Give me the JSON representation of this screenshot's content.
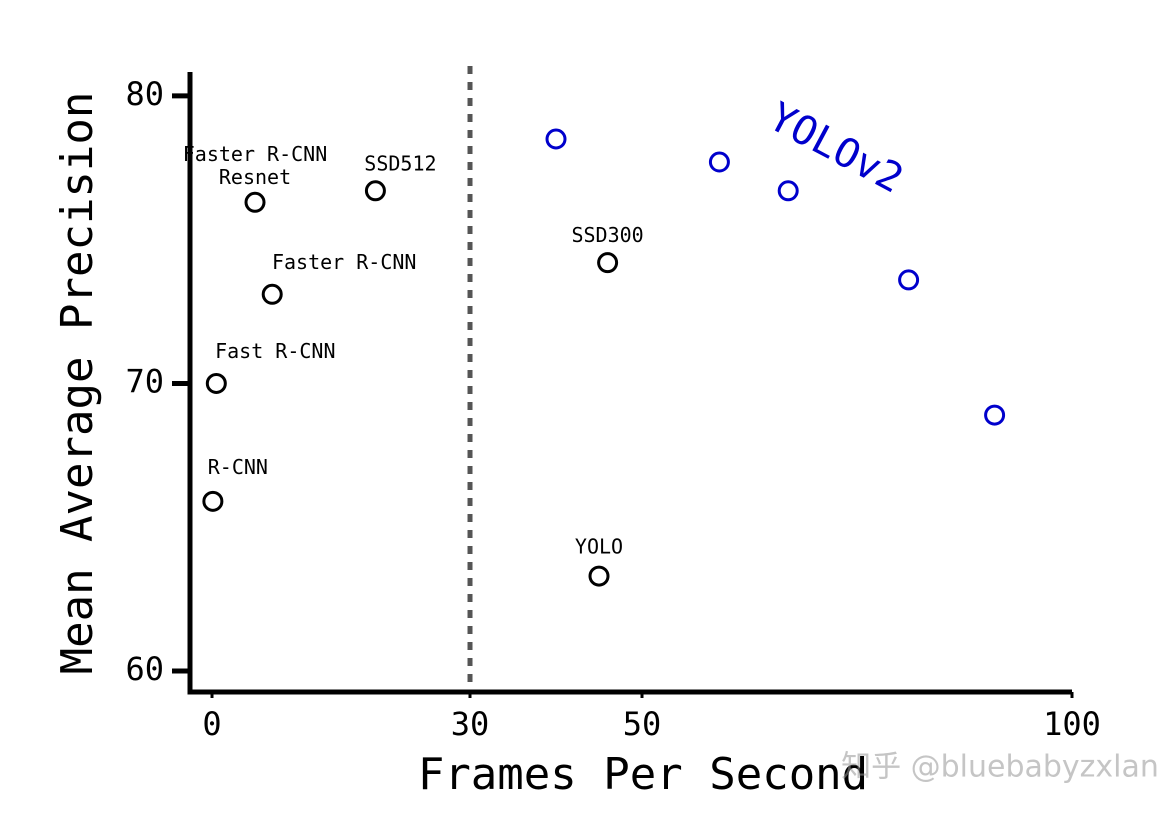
{
  "chart_data": {
    "type": "scatter",
    "xlabel": "Frames Per Second",
    "ylabel": "Mean Average Precision",
    "xlim": [
      -2.56,
      100
    ],
    "ylim": [
      59.27,
      80.83
    ],
    "xticks": [
      0,
      30,
      50,
      100
    ],
    "yticks": [
      60,
      70,
      80
    ],
    "vline": 30,
    "series": [
      {
        "color": "#000000",
        "x": [
          0.1,
          0.5,
          7,
          5,
          19,
          46,
          45
        ],
        "values": [
          65.9,
          70.0,
          73.1,
          76.3,
          76.7,
          74.2,
          63.3
        ],
        "point_labels": [
          [
            "R-CNN"
          ],
          [
            "Fast R-CNN"
          ],
          [
            "Faster R-CNN"
          ],
          [
            "Faster R-CNN",
            "Resnet"
          ],
          [
            "SSD512"
          ],
          [
            "SSD300"
          ],
          [
            "YOLO"
          ]
        ]
      },
      {
        "name": "YOLOv2",
        "color": "#0000cc",
        "x": [
          40,
          59,
          67,
          81,
          91
        ],
        "values": [
          78.5,
          77.7,
          76.7,
          73.6,
          68.9
        ]
      }
    ],
    "watermark": "知乎 @bluebabyzxlan"
  }
}
